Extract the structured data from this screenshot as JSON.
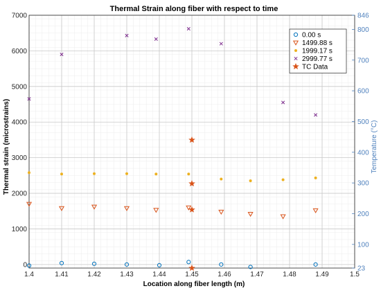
{
  "chart_data": {
    "type": "scatter",
    "title": "Thermal Strain along fiber with respect to time",
    "xlabel": "Location along fiber length (m)",
    "ylabel": "Thermal strain (microstrains)",
    "ylabel_right": "Temperature (°C)",
    "xlim": [
      1.4,
      1.5
    ],
    "ylim": [
      -100,
      7000
    ],
    "ylim_right": [
      23,
      846
    ],
    "x_ticks": [
      "1.4",
      "1.41",
      "1.42",
      "1.43",
      "1.44",
      "1.45",
      "1.46",
      "1.47",
      "1.48",
      "1.49",
      "1.5"
    ],
    "y_ticks": [
      "0",
      "1000",
      "2000",
      "3000",
      "4000",
      "5000",
      "6000",
      "7000"
    ],
    "y_right_ticks": [
      "23",
      "100",
      "200",
      "300",
      "400",
      "500",
      "600",
      "700",
      "800",
      "846"
    ],
    "grid": true,
    "legend_position": "top-right",
    "series": [
      {
        "name": "0.00 s",
        "marker": "circle",
        "color": "#0072BD",
        "axis": "left",
        "points": [
          [
            1.4,
            -30
          ],
          [
            1.41,
            40
          ],
          [
            1.42,
            20
          ],
          [
            1.43,
            0
          ],
          [
            1.44,
            -20
          ],
          [
            1.449,
            70
          ],
          [
            1.459,
            0
          ],
          [
            1.468,
            -70
          ],
          [
            1.488,
            0
          ]
        ]
      },
      {
        "name": "1499.88 s",
        "marker": "triangle-down",
        "color": "#D95319",
        "axis": "left",
        "points": [
          [
            1.4,
            1700
          ],
          [
            1.41,
            1580
          ],
          [
            1.42,
            1620
          ],
          [
            1.43,
            1580
          ],
          [
            1.439,
            1530
          ],
          [
            1.449,
            1600
          ],
          [
            1.459,
            1480
          ],
          [
            1.468,
            1420
          ],
          [
            1.478,
            1350
          ],
          [
            1.488,
            1520
          ]
        ]
      },
      {
        "name": "1999.17 s",
        "marker": "dot",
        "color": "#EDB120",
        "axis": "left",
        "points": [
          [
            1.4,
            2580
          ],
          [
            1.41,
            2540
          ],
          [
            1.42,
            2550
          ],
          [
            1.43,
            2550
          ],
          [
            1.439,
            2540
          ],
          [
            1.449,
            2540
          ],
          [
            1.459,
            2400
          ],
          [
            1.468,
            2350
          ],
          [
            1.478,
            2380
          ],
          [
            1.488,
            2430
          ]
        ]
      },
      {
        "name": "2999.77 s",
        "marker": "x",
        "color": "#7E2F8E",
        "axis": "left",
        "points": [
          [
            1.4,
            4650
          ],
          [
            1.41,
            5900
          ],
          [
            1.43,
            6430
          ],
          [
            1.439,
            6330
          ],
          [
            1.449,
            6620
          ],
          [
            1.459,
            6200
          ],
          [
            1.478,
            4550
          ],
          [
            1.488,
            4200
          ]
        ]
      },
      {
        "name": "TC Data",
        "marker": "star",
        "color": "#D95319",
        "axis": "right",
        "points": [
          [
            1.45,
            440
          ],
          [
            1.45,
            298
          ],
          [
            1.45,
            213
          ],
          [
            1.45,
            23
          ]
        ]
      }
    ]
  }
}
